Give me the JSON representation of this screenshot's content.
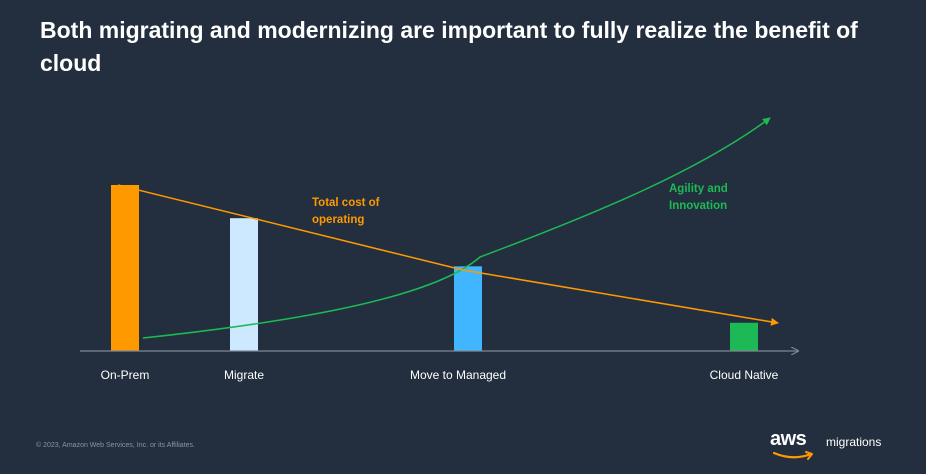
{
  "slide": {
    "title": "Both migrating and modernizing are important to fully realize the benefit of cloud",
    "footer_copyright": "© 2023, Amazon Web Services, Inc. or its Affiliates.",
    "logo_wordmark": "aws",
    "logo_product": "migrations"
  },
  "colors": {
    "background": "#232f3e",
    "cost_line": "#ff9900",
    "agility_line": "#1db954",
    "axis": "#7f8895"
  },
  "chart_data": {
    "type": "bar",
    "categories": [
      "On-Prem",
      "Migrate",
      "Move to Managed",
      "Cloud Native"
    ],
    "values": [
      100,
      80,
      51,
      17
    ],
    "bar_colors": [
      "#ff9900",
      "#cce9ff",
      "#3fb6ff",
      "#1db954"
    ],
    "ylim": [
      0,
      100
    ],
    "overlays": [
      {
        "name": "Total cost of operating",
        "label_lines": [
          "Total cost of",
          "operating"
        ],
        "color": "#ff9900",
        "trend": "decreasing"
      },
      {
        "name": "Agility and Innovation",
        "label_lines": [
          "Agility and",
          "Innovation"
        ],
        "color": "#1db954",
        "trend": "increasing"
      }
    ],
    "grid": false,
    "legend": "inline"
  }
}
